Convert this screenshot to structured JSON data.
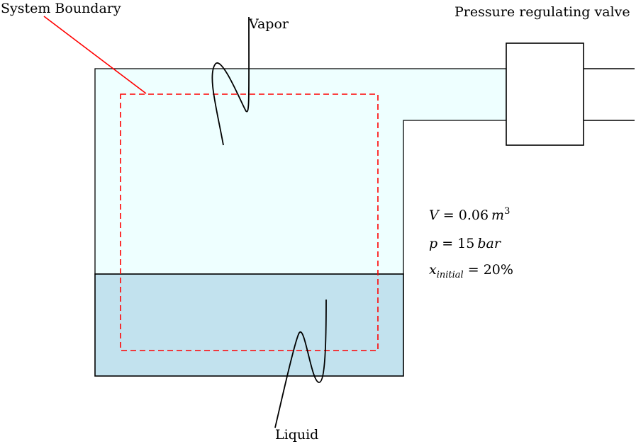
{
  "labels": {
    "system_boundary": "System Boundary",
    "vapor": "Vapor",
    "liquid": "Liquid",
    "valve": "Pressure regulating valve"
  },
  "givens": {
    "volume": {
      "symbol": "V",
      "equals": " = ",
      "value": "0.06",
      "unit": "m",
      "exponent": "3"
    },
    "pressure": {
      "symbol": "p",
      "equals": " = ",
      "value": "15",
      "unit": "bar"
    },
    "quality": {
      "symbol": "x",
      "subscript": "initial",
      "equals": " = ",
      "value": "20%"
    }
  },
  "colors": {
    "vapor_fill": "#eeffff",
    "liquid_fill": "#c2e2ee",
    "boundary": "#ff0000",
    "outline": "#000000"
  }
}
